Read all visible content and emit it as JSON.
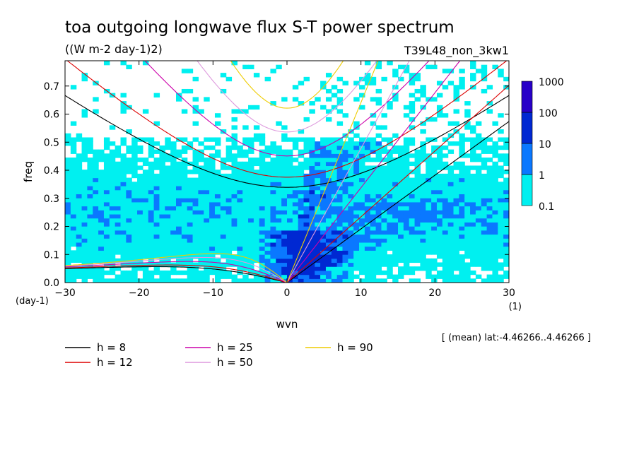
{
  "chart_data": {
    "type": "heatmap",
    "title": "toa outgoing longwave flux S-T power spectrum",
    "subtitle": "((W m-2 day-1)2)",
    "run_label": "T39L48_non_3kw1",
    "xlabel": "wvn",
    "ylabel": "freq",
    "x_unit": "(1)",
    "y_unit": "(day-1)",
    "xlim": [
      -30,
      30
    ],
    "ylim": [
      0,
      0.79
    ],
    "x_ticks": [
      -30,
      -20,
      -10,
      0,
      10,
      20,
      30
    ],
    "y_ticks": [
      0.0,
      0.1,
      0.2,
      0.3,
      0.4,
      0.5,
      0.6,
      0.7
    ],
    "x_tick_labels": [
      "-30",
      "-20",
      "-10",
      "0",
      "10",
      "20",
      "30"
    ],
    "y_tick_labels": [
      "0.0",
      "0.1",
      "0.2",
      "0.3",
      "0.4",
      "0.5",
      "0.6",
      "0.7"
    ],
    "colorbar": {
      "levels": [
        0.1,
        1,
        10,
        100,
        1000
      ],
      "labels": [
        "0.1",
        "1",
        "10",
        "100",
        "1000"
      ],
      "colors": [
        "#00f0f0",
        "#0a78ff",
        "#0028d2",
        "#2800c8"
      ]
    },
    "footnote": "[ (mean) lat:-4.46266..4.46266 ]",
    "series": [
      {
        "name": "h =  8",
        "label": "h =  8",
        "color": "#000000",
        "h": 8
      },
      {
        "name": "h = 12",
        "label": "h = 12",
        "color": "#dd0000",
        "h": 12
      },
      {
        "name": "h = 25",
        "label": "h = 25",
        "color": "#cc00aa",
        "h": 25
      },
      {
        "name": "h = 50",
        "label": "h = 50",
        "color": "#dd99dd",
        "h": 50
      },
      {
        "name": "h = 90",
        "label": "h = 90",
        "color": "#eecc00",
        "h": 90
      }
    ],
    "grid": false
  }
}
